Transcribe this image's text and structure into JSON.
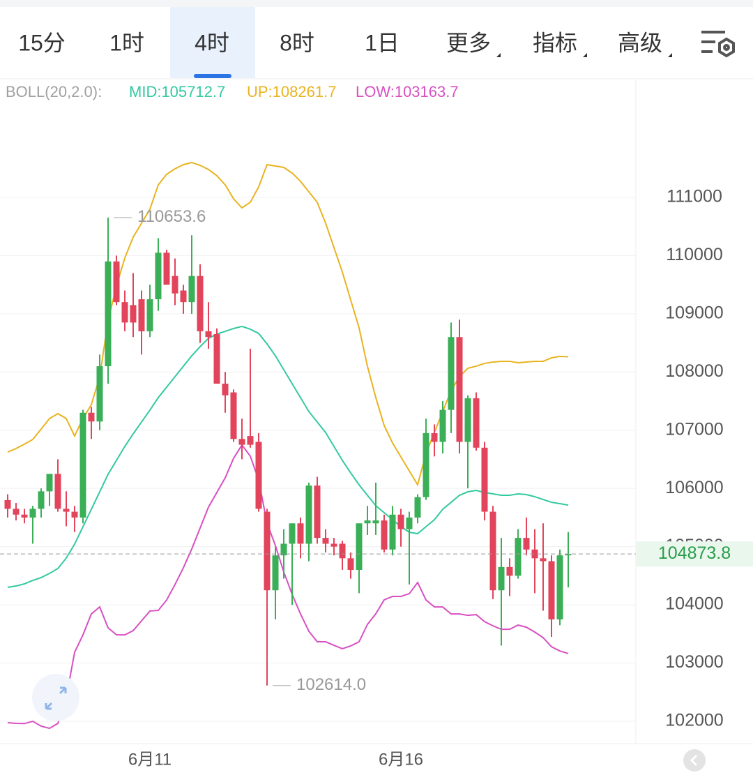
{
  "tabs": {
    "items": [
      "15分",
      "1时",
      "4时",
      "8时",
      "1日",
      "更多",
      "指标",
      "高级"
    ],
    "active": 2
  },
  "chart_data": {
    "type": "candlestick",
    "indicator": "BOLL(20,2.0):",
    "categories": [
      null,
      null,
      null,
      null,
      null,
      null,
      null,
      null,
      null,
      null,
      null,
      null,
      null,
      null,
      null,
      null,
      null,
      "6月11",
      null,
      null,
      null,
      null,
      null,
      null,
      null,
      null,
      null,
      null,
      null,
      null,
      null,
      null,
      null,
      null,
      null,
      null,
      null,
      null,
      null,
      null,
      null,
      null,
      null,
      null,
      null,
      null,
      null,
      "6月16",
      null,
      null,
      null,
      null,
      null,
      null,
      null,
      null,
      null,
      null,
      null,
      null,
      null,
      null,
      null,
      null,
      null,
      null,
      null,
      null
    ],
    "open": [
      105800,
      105650,
      105550,
      105500,
      105650,
      105950,
      106250,
      105650,
      105600,
      105500,
      107300,
      107150,
      108100,
      109900,
      109200,
      109150,
      109250,
      108700,
      109250,
      110050,
      109650,
      109400,
      109200,
      109650,
      108700,
      108650,
      107800,
      107650,
      106850,
      106900,
      106800,
      105600,
      104250,
      104850,
      105050,
      105400,
      105050,
      106050,
      105150,
      105050,
      105050,
      104800,
      104600,
      105400,
      105400,
      105450,
      104950,
      105550,
      105300,
      105500,
      105850,
      106950,
      106800,
      107350,
      108600,
      106800,
      107550,
      106700,
      105600,
      104250,
      104650,
      104500,
      105150,
      104950,
      104800,
      104750,
      103750,
      104850
    ],
    "high": [
      105900,
      105750,
      105650,
      105700,
      106000,
      106250,
      106500,
      105950,
      105700,
      107350,
      107400,
      108300,
      110653.6,
      110000,
      109400,
      109700,
      109400,
      109500,
      110300,
      110100,
      109950,
      109500,
      110350,
      109850,
      109200,
      108750,
      108000,
      107700,
      107200,
      108400,
      106950,
      105650,
      105000,
      105300,
      105400,
      105500,
      106100,
      106200,
      105300,
      105150,
      105100,
      104900,
      105400,
      105700,
      106100,
      105550,
      105700,
      105650,
      105600,
      105900,
      107200,
      107100,
      107500,
      108850,
      108900,
      107600,
      107650,
      106800,
      105700,
      105150,
      104800,
      105300,
      105500,
      105300,
      105400,
      104850,
      104950,
      105250
    ],
    "low": [
      105500,
      105450,
      105400,
      105050,
      105500,
      105700,
      105600,
      105350,
      105250,
      105400,
      106850,
      107000,
      107800,
      109150,
      108700,
      108600,
      108300,
      108600,
      109050,
      109500,
      109150,
      109000,
      109000,
      108500,
      108400,
      107800,
      107300,
      106800,
      106500,
      106700,
      105600,
      102614,
      103750,
      104450,
      104000,
      104800,
      104750,
      105050,
      104900,
      104850,
      104600,
      104450,
      104200,
      105200,
      105200,
      104900,
      104850,
      105000,
      104350,
      105400,
      105800,
      106550,
      106600,
      106950,
      106600,
      106000,
      106650,
      105450,
      104100,
      103300,
      104150,
      104450,
      104850,
      104200,
      103900,
      103450,
      103650,
      104300
    ],
    "close": [
      105650,
      105550,
      105500,
      105650,
      105950,
      106250,
      105650,
      105600,
      105500,
      107300,
      107150,
      108100,
      109900,
      109200,
      108850,
      108850,
      108700,
      109250,
      110050,
      109500,
      109350,
      109200,
      109650,
      108700,
      108600,
      107800,
      107600,
      106850,
      106750,
      106750,
      105650,
      104250,
      104850,
      105050,
      105400,
      105050,
      106050,
      105150,
      105050,
      105000,
      104800,
      104600,
      105400,
      105450,
      105450,
      104950,
      105550,
      105300,
      105500,
      105850,
      106950,
      106800,
      107350,
      108600,
      106800,
      107550,
      106700,
      105600,
      104250,
      104650,
      104500,
      105150,
      104950,
      104800,
      104750,
      103750,
      104850,
      104873.8
    ],
    "series": [
      {
        "name": "MID:105712.7",
        "color": "#33c9a0",
        "values": [
          104300,
          104324,
          104360,
          104420,
          104468,
          104540,
          104624,
          104803,
          105043,
          105343,
          105642,
          105942,
          106242,
          106482,
          106721,
          106937,
          107141,
          107345,
          107560,
          107740,
          107920,
          108100,
          108279,
          108435,
          108579,
          108651,
          108699,
          108747,
          108783,
          108735,
          108663,
          108483,
          108279,
          108040,
          107800,
          107560,
          107321,
          107141,
          106961,
          106721,
          106482,
          106266,
          106062,
          105882,
          105703,
          105583,
          105463,
          105343,
          105247,
          105223,
          105343,
          105463,
          105642,
          105762,
          105882,
          105942,
          105966,
          105930,
          105906,
          105882,
          105882,
          105906,
          105894,
          105858,
          105810,
          105762,
          105738,
          105712.7
        ]
      },
      {
        "name": "UP:108261.7",
        "color": "#e9b320",
        "values": [
          106625,
          106685,
          106760,
          106841,
          107020,
          107201,
          107285,
          107201,
          106901,
          107201,
          107440,
          107920,
          108879,
          109478,
          109958,
          110317,
          110557,
          110796,
          111216,
          111396,
          111491,
          111563,
          111599,
          111551,
          111479,
          111372,
          111216,
          110976,
          110820,
          110916,
          111180,
          111563,
          111539,
          111515,
          111419,
          111276,
          111096,
          110916,
          110557,
          110137,
          109718,
          109238,
          108759,
          108100,
          107560,
          107081,
          106781,
          106542,
          106302,
          106062,
          106602,
          106961,
          107321,
          107680,
          107920,
          108064,
          108100,
          108148,
          108172,
          108184,
          108184,
          108160,
          108172,
          108184,
          108184,
          108244,
          108268,
          108261.7
        ]
      },
      {
        "name": "LOW:103163.7",
        "color": "#d84fc2",
        "values": [
          101975,
          101963,
          101960,
          101999,
          101916,
          101879,
          101963,
          102405,
          103185,
          103485,
          103844,
          103964,
          103605,
          103486,
          103484,
          103557,
          103725,
          103894,
          103904,
          104084,
          104349,
          104637,
          104959,
          105319,
          105679,
          105930,
          106182,
          106518,
          106746,
          106554,
          106146,
          105403,
          105019,
          104565,
          104181,
          103844,
          103546,
          103366,
          103365,
          103305,
          103246,
          103294,
          103365,
          103664,
          103846,
          104085,
          104145,
          104144,
          104192,
          104384,
          104084,
          103965,
          103963,
          103844,
          103844,
          103820,
          103832,
          103712,
          103640,
          103580,
          103580,
          103652,
          103616,
          103532,
          103436,
          103280,
          103208,
          103163.7
        ]
      }
    ],
    "up_color": "#3aaf57",
    "down_color": "#e2445c",
    "high_label": "110653.6",
    "low_label": "102614.0",
    "last_price": 104873.8,
    "ylim": [
      101616,
      113013
    ],
    "yticks": [
      102000,
      103000,
      104000,
      105000,
      106000,
      107000,
      108000,
      109000,
      110000,
      111000
    ],
    "grid": true
  }
}
